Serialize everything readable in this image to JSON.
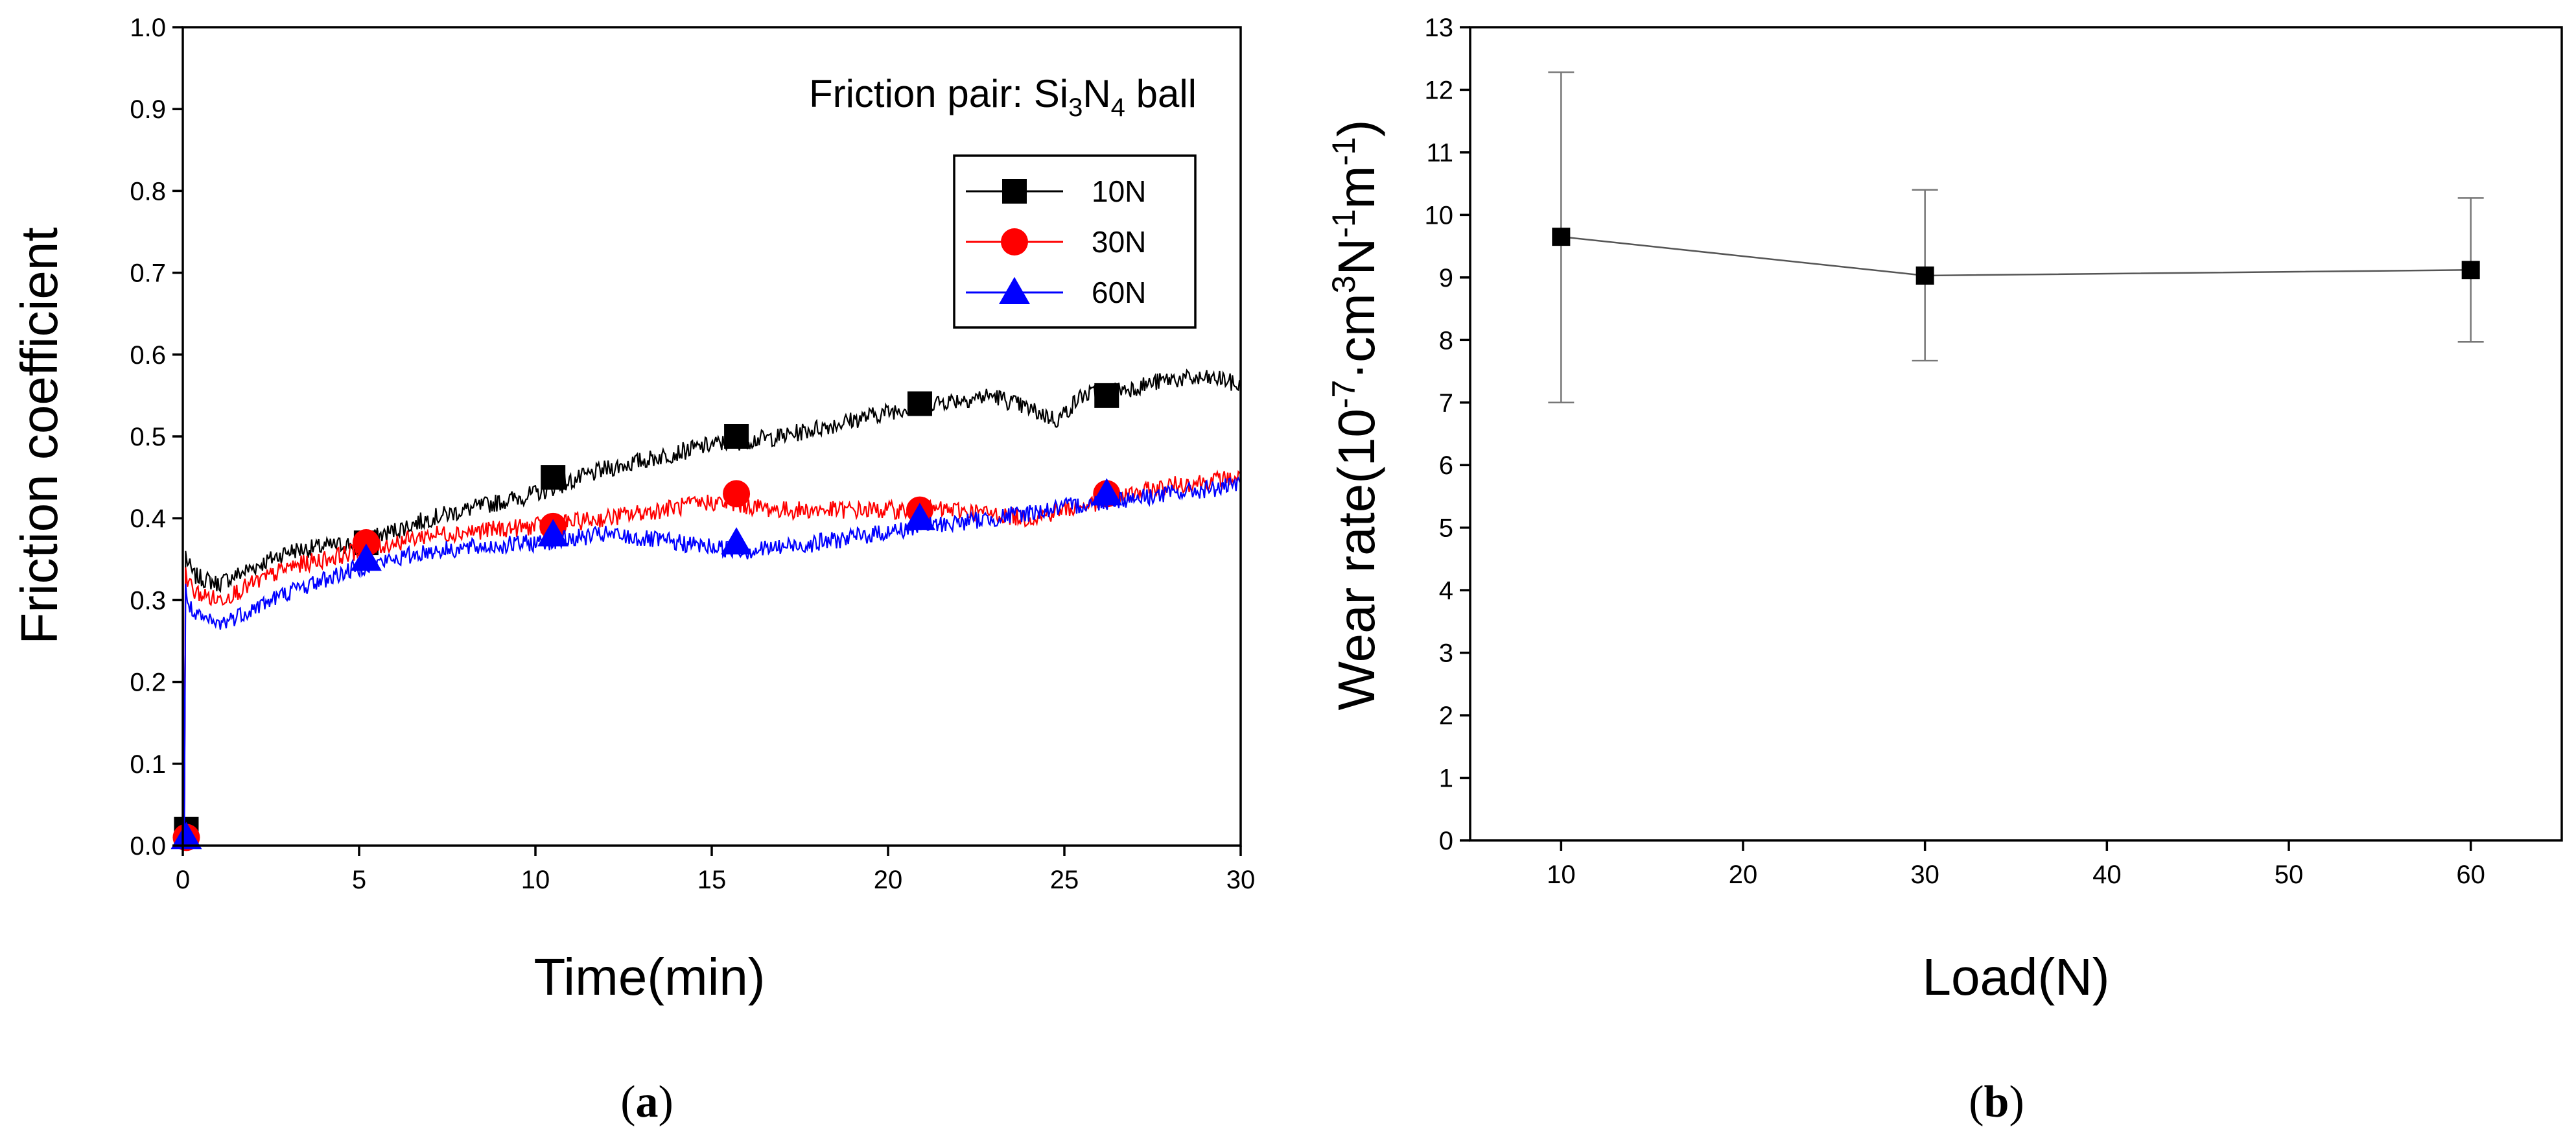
{
  "chart_data": [
    {
      "type": "line",
      "panel_label_open": "(",
      "panel_label_letter": "a",
      "panel_label_close": ")",
      "annotation_prefix": "Friction pair: Si",
      "annotation_sub1": "3",
      "annotation_mid": "N",
      "annotation_sub2": "4",
      "annotation_suffix": " ball",
      "xlabel": "Time(min)",
      "ylabel": "Friction coefficient",
      "xlim": [
        0,
        30
      ],
      "ylim": [
        0,
        1.0
      ],
      "xticks": [
        "0",
        "5",
        "10",
        "15",
        "20",
        "25",
        "30"
      ],
      "yticks": [
        "0.0",
        "0.1",
        "0.2",
        "0.3",
        "0.4",
        "0.5",
        "0.6",
        "0.7",
        "0.8",
        "0.9",
        "1.0"
      ],
      "legend_position": "upper-right",
      "series": [
        {
          "name": "10N",
          "color": "#000000",
          "marker": "square",
          "markers": [
            [
              0.1,
              0.02
            ],
            [
              5.2,
              0.37
            ],
            [
              10.5,
              0.45
            ],
            [
              15.7,
              0.5
            ],
            [
              20.9,
              0.54
            ],
            [
              26.2,
              0.55
            ]
          ],
          "trend": [
            [
              0,
              0.36
            ],
            [
              0.3,
              0.33
            ],
            [
              1,
              0.32
            ],
            [
              3,
              0.36
            ],
            [
              5,
              0.37
            ],
            [
              7,
              0.4
            ],
            [
              10,
              0.43
            ],
            [
              12,
              0.46
            ],
            [
              15,
              0.49
            ],
            [
              17,
              0.5
            ],
            [
              19,
              0.52
            ],
            [
              21,
              0.54
            ],
            [
              23,
              0.55
            ],
            [
              24.8,
              0.52
            ],
            [
              25.5,
              0.55
            ],
            [
              27,
              0.56
            ],
            [
              28,
              0.57
            ],
            [
              29.5,
              0.57
            ],
            [
              30,
              0.56
            ]
          ]
        },
        {
          "name": "30N",
          "color": "#ff0000",
          "marker": "circle",
          "markers": [
            [
              0.1,
              0.01
            ],
            [
              5.2,
              0.37
            ],
            [
              10.5,
              0.39
            ],
            [
              15.7,
              0.43
            ],
            [
              20.9,
              0.41
            ],
            [
              26.2,
              0.43
            ]
          ],
          "trend": [
            [
              0,
              0.34
            ],
            [
              0.3,
              0.31
            ],
            [
              1,
              0.3
            ],
            [
              3,
              0.34
            ],
            [
              5,
              0.36
            ],
            [
              7,
              0.38
            ],
            [
              10,
              0.39
            ],
            [
              12,
              0.4
            ],
            [
              15,
              0.42
            ],
            [
              17,
              0.41
            ],
            [
              20,
              0.41
            ],
            [
              22,
              0.41
            ],
            [
              24,
              0.4
            ],
            [
              26,
              0.42
            ],
            [
              28,
              0.44
            ],
            [
              30,
              0.45
            ]
          ]
        },
        {
          "name": "60N",
          "color": "#0000ff",
          "marker": "triangle",
          "markers": [
            [
              0.1,
              0.01
            ],
            [
              5.2,
              0.35
            ],
            [
              10.5,
              0.38
            ],
            [
              15.7,
              0.37
            ],
            [
              20.9,
              0.4
            ],
            [
              26.2,
              0.43
            ]
          ],
          "trend": [
            [
              0,
              0.32
            ],
            [
              0.3,
              0.28
            ],
            [
              1,
              0.27
            ],
            [
              3,
              0.31
            ],
            [
              5,
              0.34
            ],
            [
              7,
              0.36
            ],
            [
              10,
              0.37
            ],
            [
              12,
              0.38
            ],
            [
              14,
              0.37
            ],
            [
              16,
              0.36
            ],
            [
              18,
              0.37
            ],
            [
              21,
              0.39
            ],
            [
              23,
              0.4
            ],
            [
              26,
              0.42
            ],
            [
              28,
              0.43
            ],
            [
              30,
              0.44
            ]
          ]
        }
      ]
    },
    {
      "type": "scatter",
      "panel_label_open": "(",
      "panel_label_letter": "b",
      "panel_label_close": ")",
      "xlabel": "Load(N)",
      "ylabel_prefix": "Wear rate(10",
      "ylabel_sup1": "-7",
      "ylabel_mid1": "·cm",
      "ylabel_sup2": "3",
      "ylabel_mid2": "N",
      "ylabel_sup3": "-1",
      "ylabel_mid3": "m",
      "ylabel_sup4": "-1",
      "ylabel_suffix": ")",
      "xlim": [
        5,
        65
      ],
      "ylim": [
        0,
        13
      ],
      "xticks": [
        "10",
        "20",
        "30",
        "40",
        "50",
        "60"
      ],
      "yticks": [
        "0",
        "1",
        "2",
        "3",
        "4",
        "5",
        "6",
        "7",
        "8",
        "9",
        "10",
        "11",
        "12",
        "13"
      ],
      "series": [
        {
          "name": "Wear rate",
          "color": "#000000",
          "x": [
            10,
            30,
            60
          ],
          "y": [
            9.65,
            9.03,
            9.12
          ],
          "err_low": [
            7.0,
            7.67,
            7.97
          ],
          "err_high": [
            12.28,
            10.4,
            10.27
          ]
        }
      ]
    }
  ]
}
